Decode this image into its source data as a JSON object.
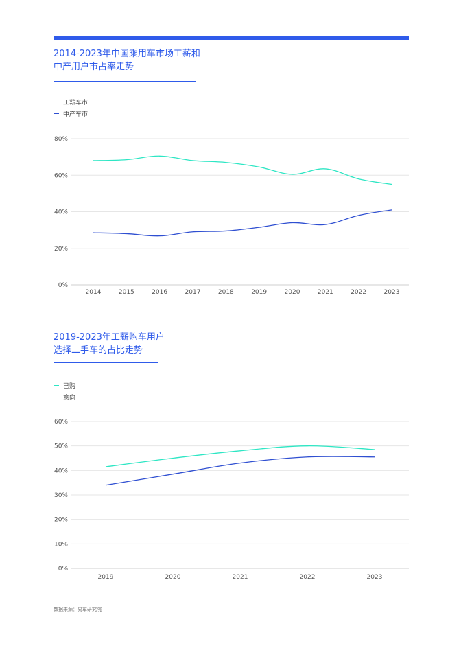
{
  "chart_data": [
    {
      "type": "line",
      "title_lines": [
        "2014-2023年中国乘用车市场工薪和",
        "中产用户市占率走势"
      ],
      "x": [
        "2014",
        "2015",
        "2016",
        "2017",
        "2018",
        "2019",
        "2020",
        "2021",
        "2022",
        "2023"
      ],
      "ylim": [
        0,
        80
      ],
      "yticks": [
        0,
        20,
        40,
        60,
        80
      ],
      "ytick_labels": [
        "0%",
        "20%",
        "40%",
        "60%",
        "80%"
      ],
      "series": [
        {
          "name": "工薪车市",
          "color": "#2ee6c4",
          "values": [
            68,
            68.5,
            70.5,
            68,
            67,
            64.5,
            60.5,
            63.5,
            58,
            55
          ]
        },
        {
          "name": "中产车市",
          "color": "#2f4fd1",
          "values": [
            28.5,
            28,
            26.8,
            29,
            29.5,
            31.5,
            34,
            33,
            38,
            41
          ]
        }
      ],
      "grid": true,
      "legend": "top-left"
    },
    {
      "type": "line",
      "title_lines": [
        "2019-2023年工薪购车用户",
        "选择二手车的占比走势"
      ],
      "x": [
        "2019",
        "2020",
        "2021",
        "2022",
        "2023"
      ],
      "ylim": [
        0,
        60
      ],
      "yticks": [
        0,
        10,
        20,
        30,
        40,
        50,
        60
      ],
      "ytick_labels": [
        "0%",
        "10%",
        "20%",
        "30%",
        "40%",
        "50%",
        "60%"
      ],
      "series": [
        {
          "name": "已购",
          "color": "#2ee6c4",
          "values": [
            41.5,
            45,
            48,
            50,
            48.5
          ]
        },
        {
          "name": "意向",
          "color": "#2f4fd1",
          "values": [
            34,
            38.5,
            43,
            45.5,
            45.5
          ]
        }
      ],
      "grid": true,
      "legend": "top-left"
    }
  ],
  "source": "数据来源：易车研究院"
}
